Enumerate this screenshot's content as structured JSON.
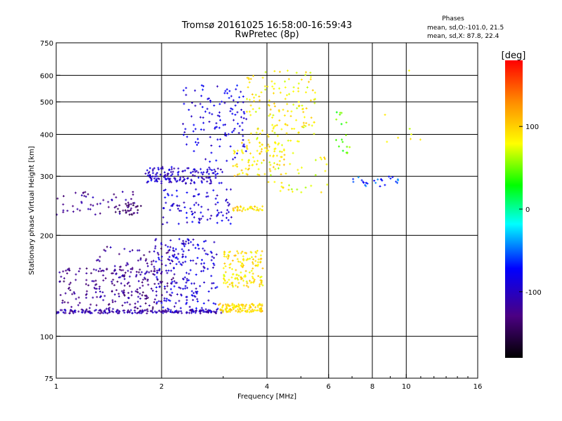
{
  "chart_data": {
    "type": "scatter",
    "title": "Tromsø 20161025 16:58:00-16:59:43",
    "subtitle": "RwPretec (8p)",
    "xlabel": "Frequency [MHz]",
    "ylabel": "Stationary phase Virtual Height [km]",
    "x_scale": "log",
    "y_scale": "log",
    "xlim": [
      1,
      16
    ],
    "ylim": [
      75,
      750
    ],
    "x_ticks": [
      1,
      2,
      4,
      6,
      8,
      10,
      16
    ],
    "x_tick_labels": [
      "1",
      "2",
      "4",
      "6",
      "8",
      "10",
      "16"
    ],
    "y_ticks": [
      75,
      100,
      200,
      300,
      400,
      500,
      600,
      750
    ],
    "y_tick_labels": [
      "75",
      "100",
      "200",
      "300",
      "400",
      "500",
      "600",
      "750"
    ],
    "grid": true,
    "phase_note": {
      "title": "Phases",
      "line1": "mean, sd,O:-101.0, 21.5",
      "line2": "mean, sd,X:  87.8, 22.4"
    },
    "colorbar": {
      "label": "[deg]",
      "range": [
        -180,
        180
      ],
      "ticks": [
        100,
        0,
        -100
      ],
      "tick_labels": [
        "100",
        "0",
        "-100"
      ],
      "colors": [
        "#000000",
        "#4b0082",
        "#0000ff",
        "#00ffff",
        "#00ff00",
        "#ffff00",
        "#ff8c00",
        "#ff0000"
      ]
    },
    "clusters": [
      {
        "x": [
          1.0,
          3.0
        ],
        "y": [
          117,
          120
        ],
        "phase": -110,
        "count": 180
      },
      {
        "x": [
          1.0,
          2.0
        ],
        "y": [
          120,
          160
        ],
        "phase": -125,
        "count": 170
      },
      {
        "x": [
          1.3,
          2.2
        ],
        "y": [
          130,
          185
        ],
        "phase": -120,
        "count": 110
      },
      {
        "x": [
          1.9,
          2.9
        ],
        "y": [
          118,
          195
        ],
        "phase": -90,
        "count": 200
      },
      {
        "x": [
          2.9,
          3.9
        ],
        "y": [
          118,
          125
        ],
        "phase": 95,
        "count": 110
      },
      {
        "x": [
          3.0,
          3.9
        ],
        "y": [
          140,
          180
        ],
        "phase": 90,
        "count": 140
      },
      {
        "x": [
          1.0,
          1.7
        ],
        "y": [
          230,
          270
        ],
        "phase": -120,
        "count": 50
      },
      {
        "x": [
          1.45,
          1.75
        ],
        "y": [
          230,
          250
        ],
        "phase": -140,
        "count": 30
      },
      {
        "x": [
          1.8,
          3.0
        ],
        "y": [
          285,
          320
        ],
        "phase": -95,
        "count": 150
      },
      {
        "x": [
          2.0,
          3.2
        ],
        "y": [
          215,
          275
        ],
        "phase": -90,
        "count": 90
      },
      {
        "x": [
          2.3,
          3.5
        ],
        "y": [
          330,
          560
        ],
        "phase": -85,
        "count": 120
      },
      {
        "x": [
          3.2,
          4.5
        ],
        "y": [
          300,
          380
        ],
        "phase": 90,
        "count": 90
      },
      {
        "x": [
          3.5,
          5.5
        ],
        "y": [
          380,
          620
        ],
        "phase": 85,
        "count": 140
      },
      {
        "x": [
          3.2,
          3.9
        ],
        "y": [
          236,
          244
        ],
        "phase": 95,
        "count": 35
      },
      {
        "x": [
          4.0,
          6.0
        ],
        "y": [
          265,
          360
        ],
        "phase": 80,
        "count": 40
      },
      {
        "x": [
          6.3,
          6.9
        ],
        "y": [
          350,
          480
        ],
        "phase": 45,
        "count": 18
      },
      {
        "x": [
          7.0,
          9.5
        ],
        "y": [
          280,
          300
        ],
        "phase": -60,
        "count": 25
      },
      {
        "x": [
          8.5,
          11.0
        ],
        "y": [
          340,
          640
        ],
        "phase": 80,
        "count": 8
      }
    ]
  }
}
